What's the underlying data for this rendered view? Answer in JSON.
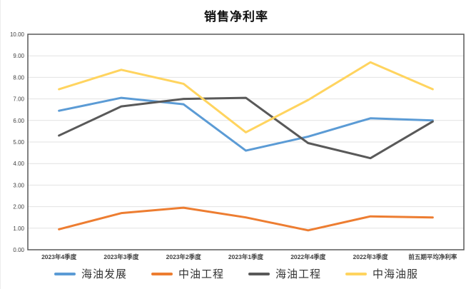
{
  "title": "销售净利率",
  "colors": {
    "background": "#ffffff",
    "plot_border": "#595959",
    "gridline": "#e2e2e2",
    "tick_text": "#404040",
    "title_text": "#111111"
  },
  "chart_data": {
    "type": "line",
    "title": "销售净利率",
    "categories": [
      "2023年4季度",
      "2023年3季度",
      "2023年2季度",
      "2023年1季度",
      "2022年4季度",
      "2022年3季度",
      "前五期平均净利率"
    ],
    "series": [
      {
        "name": "海油发展",
        "color": "#5B9BD5",
        "values": [
          6.45,
          7.05,
          6.75,
          4.6,
          5.25,
          6.1,
          6.0
        ]
      },
      {
        "name": "中油工程",
        "color": "#ED7D31",
        "values": [
          0.95,
          1.7,
          1.95,
          1.5,
          0.9,
          1.55,
          1.5
        ]
      },
      {
        "name": "海油工程",
        "color": "#595959",
        "values": [
          5.3,
          6.65,
          7.0,
          7.05,
          4.95,
          4.25,
          5.95
        ]
      },
      {
        "name": "中海油服",
        "color": "#FFD45F",
        "values": [
          7.45,
          8.35,
          7.7,
          5.45,
          6.95,
          8.7,
          7.45
        ]
      }
    ],
    "ylim": [
      0,
      10
    ],
    "ytick_step": 1,
    "ytick_labels": [
      "0.00",
      "1.00",
      "2.00",
      "3.00",
      "4.00",
      "5.00",
      "6.00",
      "7.00",
      "8.00",
      "9.00",
      "10.00"
    ],
    "grid": true,
    "legend_position": "bottom"
  }
}
